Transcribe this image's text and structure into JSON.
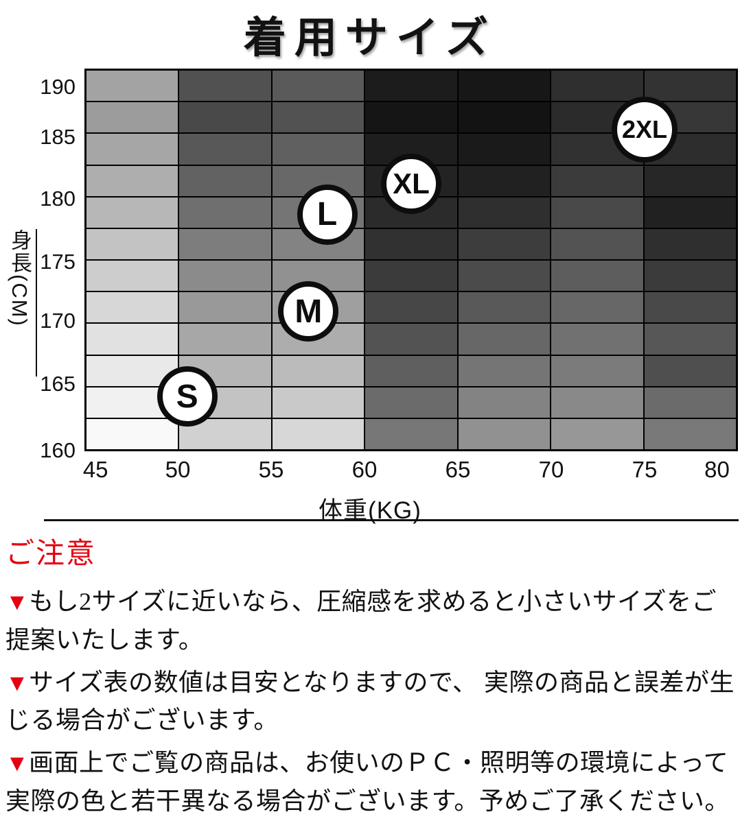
{
  "title": "着用サイズ",
  "chart_data": {
    "type": "heatmap",
    "title": "着用サイズ",
    "xlabel": "体重(KG)",
    "ylabel": "身長(CM)",
    "x_ticks": [
      "45",
      "50",
      "55",
      "60",
      "65",
      "70",
      "75",
      "80"
    ],
    "y_ticks": [
      "190",
      "185",
      "180",
      "175",
      "170",
      "165",
      "160"
    ],
    "x_range": [
      45,
      80
    ],
    "y_range": [
      160,
      190
    ],
    "grid": "on",
    "legend_position": "none",
    "size_markers": [
      {
        "label": "S",
        "weight_kg": 50.5,
        "height_cm": 164.5
      },
      {
        "label": "M",
        "weight_kg": 57.0,
        "height_cm": 171.5
      },
      {
        "label": "L",
        "weight_kg": 58.0,
        "height_cm": 179.5
      },
      {
        "label": "XL",
        "weight_kg": 62.5,
        "height_cm": 182.0
      },
      {
        "label": "2XL",
        "weight_kg": 75.0,
        "height_cm": 186.5
      }
    ],
    "cell_colors": [
      [
        "#a3a3a3",
        "#515151",
        "#5a5a5a",
        "#1c1c1c",
        "#171717",
        "#2f2f2f",
        "#333333"
      ],
      [
        "#9c9c9c",
        "#494949",
        "#525252",
        "#151515",
        "#131313",
        "#2b2b2b",
        "#373737"
      ],
      [
        "#a6a6a6",
        "#585858",
        "#606060",
        "#1e1e1e",
        "#1a1a1a",
        "#313131",
        "#2d2d2d"
      ],
      [
        "#aeaeae",
        "#626262",
        "#686868",
        "#232323",
        "#212121",
        "#3b3b3b",
        "#272727"
      ],
      [
        "#b7b7b7",
        "#6f6f6f",
        "#757575",
        "#2b2b2b",
        "#2f2f2f",
        "#494949",
        "#212121"
      ],
      [
        "#c3c3c3",
        "#7d7d7d",
        "#838383",
        "#313131",
        "#3d3d3d",
        "#535353",
        "#2f2f2f"
      ],
      [
        "#cdcdcd",
        "#8b8b8b",
        "#919191",
        "#3b3b3b",
        "#4b4b4b",
        "#5d5d5d",
        "#3b3b3b"
      ],
      [
        "#d7d7d7",
        "#999999",
        "#9f9f9f",
        "#474747",
        "#595959",
        "#676767",
        "#494949"
      ],
      [
        "#e1e1e1",
        "#a7a7a7",
        "#adadad",
        "#535353",
        "#676767",
        "#717171",
        "#575757"
      ],
      [
        "#e9e9e9",
        "#b5b5b5",
        "#bbbbbb",
        "#5f5f5f",
        "#757575",
        "#7b7b7b",
        "#4f4f4f"
      ],
      [
        "#f1f1f1",
        "#c3c3c3",
        "#c9c9c9",
        "#6b6b6b",
        "#838383",
        "#898989",
        "#6b6b6b"
      ],
      [
        "#f9f9f9",
        "#d1d1d1",
        "#d7d7d7",
        "#777777",
        "#919191",
        "#979797",
        "#797979"
      ]
    ]
  },
  "notes": {
    "heading": "ご注意",
    "marker": "▼",
    "items": [
      "もし2サイズに近いなら、圧縮感を求めると小さいサイズをご提案いたします。",
      "サイズ表の数値は目安となりますので、 実際の商品と誤差が生じる場合がございます。",
      "画面上でご覧の商品は、お使いのＰＣ・照明等の環境によって実際の色と若干異なる場合がございます。予めご了承ください。"
    ]
  },
  "colors": {
    "accent_red": "#e50012",
    "grid_line": "#000000",
    "background": "#ffffff",
    "text": "#111111"
  }
}
